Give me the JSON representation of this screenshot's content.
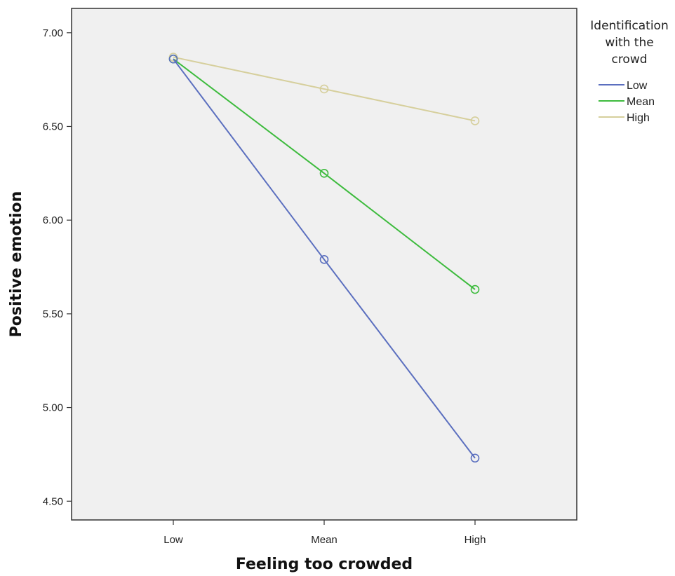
{
  "chart_data": {
    "type": "line",
    "xlabel": "Feeling too crowded",
    "ylabel": "Positive emotion",
    "categories": [
      "Low",
      "Mean",
      "High"
    ],
    "ylim": [
      4.4,
      7.13
    ],
    "yticks": [
      "4.50",
      "5.00",
      "5.50",
      "6.00",
      "6.50",
      "7.00"
    ],
    "ytick_values": [
      4.5,
      5.0,
      5.5,
      6.0,
      6.5,
      7.0
    ],
    "grid": false,
    "background": "#f0f0f0",
    "marker": "open-circle",
    "legend": {
      "title_lines": [
        "Identification",
        "with the",
        "crowd"
      ],
      "placement": "right"
    },
    "series": [
      {
        "name": "Low",
        "color": "#5b6fbf",
        "values": [
          6.86,
          5.79,
          4.73
        ]
      },
      {
        "name": "Mean",
        "color": "#3dbb3d",
        "values": [
          6.86,
          6.25,
          5.63
        ]
      },
      {
        "name": "High",
        "color": "#d6cf9c",
        "values": [
          6.87,
          6.7,
          6.53
        ]
      }
    ]
  }
}
